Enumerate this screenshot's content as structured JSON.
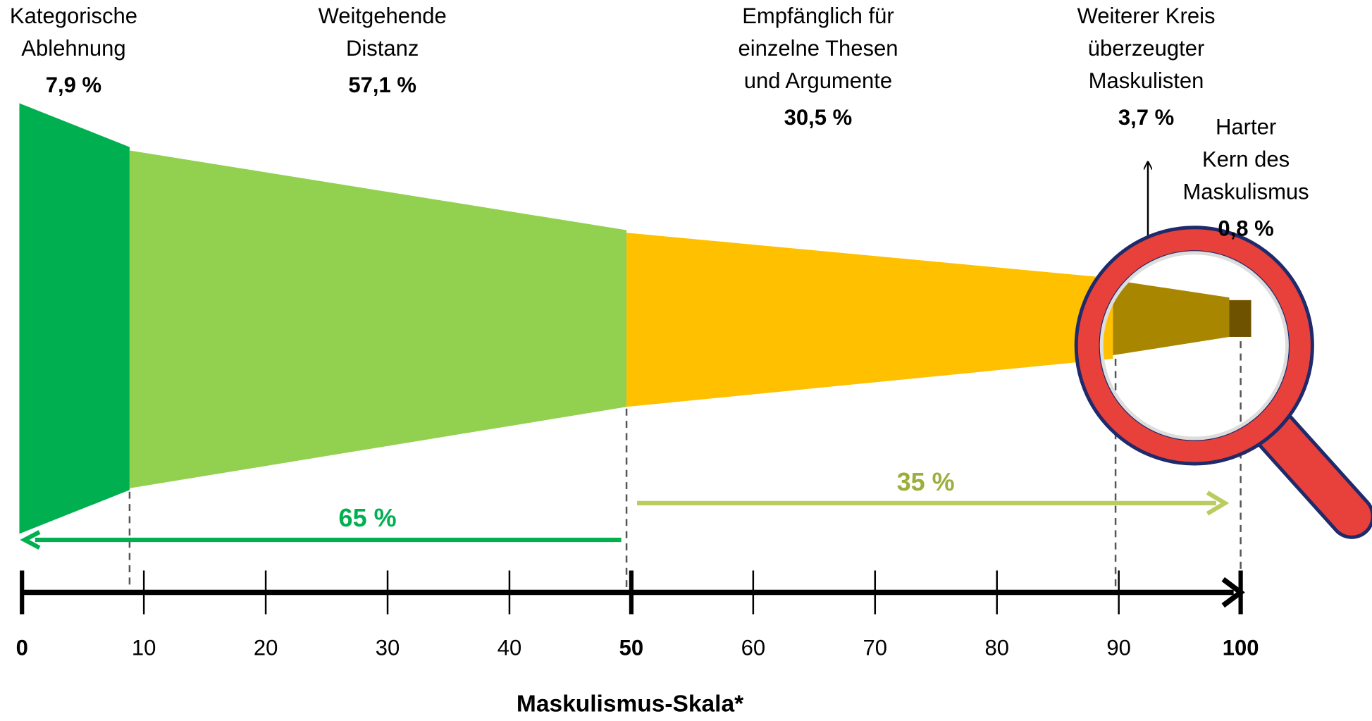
{
  "segments": [
    {
      "label_lines": [
        "Kategorische",
        "Ablehnung"
      ],
      "share": "7,9 %"
    },
    {
      "label_lines": [
        "Weitgehende",
        "Distanz"
      ],
      "share": "57,1  %"
    },
    {
      "label_lines": [
        "Empfänglich für",
        "einzelne Thesen",
        "und Argumente"
      ],
      "share": "30,5  %"
    },
    {
      "label_lines": [
        "Weiterer Kreis",
        "überzeugter",
        "Maskulisten"
      ],
      "share": "3,7  %"
    },
    {
      "label_lines": [
        "Harter",
        "Kern des",
        "Maskulismus"
      ],
      "share": "0,8 %"
    }
  ],
  "arrows": [
    {
      "label": "65 %"
    },
    {
      "label": "35 %"
    }
  ],
  "axis": {
    "ticks": [
      0,
      10,
      20,
      30,
      40,
      50,
      60,
      70,
      80,
      90,
      100
    ],
    "title": "Maskulismus-Skala*"
  }
}
